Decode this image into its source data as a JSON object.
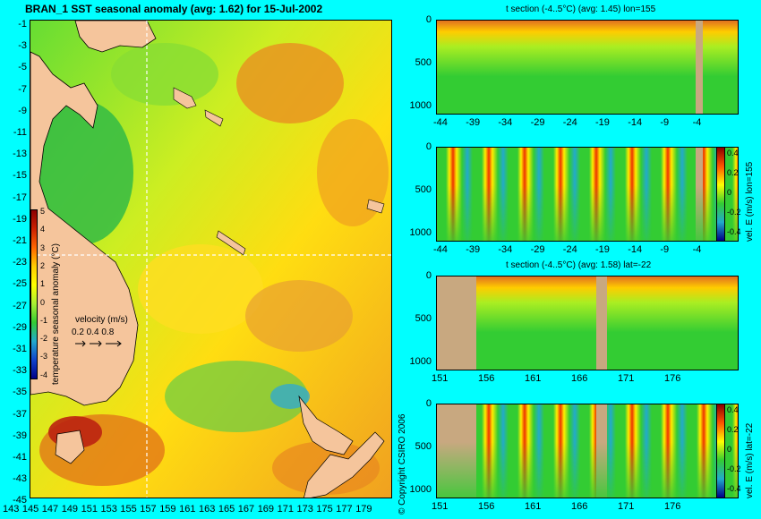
{
  "map": {
    "title": "BRAN_1 SST seasonal anomaly (avg: 1.62) for 15-Jul-2002",
    "lat_ticks": [
      "-1",
      "-3",
      "-5",
      "-7",
      "-9",
      "-11",
      "-13",
      "-15",
      "-17",
      "-19",
      "-21",
      "-23",
      "-25",
      "-27",
      "-29",
      "-31",
      "-33",
      "-35",
      "-37",
      "-39",
      "-41",
      "-43",
      "-45"
    ],
    "lon_ticks": [
      "143",
      "145",
      "147",
      "149",
      "151",
      "153",
      "155",
      "157",
      "159",
      "161",
      "163",
      "165",
      "167",
      "169",
      "171",
      "173",
      "175",
      "177",
      "179"
    ],
    "colorbar": {
      "label": "temperature seasonal anomaly (°C)",
      "ticks": [
        "5",
        "4",
        "3",
        "2",
        "1",
        "0",
        "-1",
        "-2",
        "-3",
        "-4"
      ]
    },
    "velocity": {
      "label": "velocity (m/s)",
      "scale": "0.2 0.4 0.8"
    },
    "crosshair": {
      "lon": 155,
      "lat": -22
    },
    "colors": {
      "land": "#f5c59c",
      "ocean_green": "#33cc33",
      "ocean_yellow": "#ffee00",
      "ocean_orange": "#ee8c1a"
    }
  },
  "sections": [
    {
      "title": "t section (-4..5°C) (avg: 1.45) lon=155",
      "x_ticks": [
        "-44",
        "-39",
        "-34",
        "-29",
        "-24",
        "-19",
        "-14",
        "-9",
        "-4"
      ],
      "y_ticks": [
        "0",
        "500",
        "1000"
      ],
      "side_label": "",
      "cb_ticks": []
    },
    {
      "title": "",
      "x_ticks": [
        "-44",
        "-39",
        "-34",
        "-29",
        "-24",
        "-19",
        "-14",
        "-9",
        "-4"
      ],
      "y_ticks": [
        "0",
        "500",
        "1000"
      ],
      "side_label": "vel. E (m/s) lon=155",
      "cb_ticks": [
        "0.4",
        "0.2",
        "0",
        "-0.2",
        "-0.4"
      ]
    },
    {
      "title": "t section (-4..5°C) (avg: 1.58) lat=-22",
      "x_ticks": [
        "151",
        "156",
        "161",
        "166",
        "171",
        "176"
      ],
      "y_ticks": [
        "0",
        "500",
        "1000"
      ],
      "side_label": "",
      "cb_ticks": []
    },
    {
      "title": "",
      "x_ticks": [
        "151",
        "156",
        "161",
        "166",
        "171",
        "176"
      ],
      "y_ticks": [
        "0",
        "500",
        "1000"
      ],
      "side_label": "vel. E (m/s) lat=-22",
      "cb_ticks": [
        "0.4",
        "0.2",
        "0",
        "-0.2",
        "-0.4"
      ]
    }
  ],
  "copyright": "© Copyright CSIRO 2006"
}
